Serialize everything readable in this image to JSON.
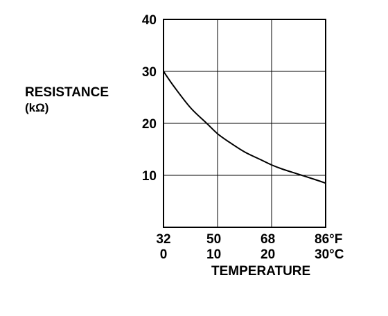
{
  "chart_data": {
    "type": "line",
    "ylabel": "RESISTANCE",
    "yunit": "(kΩ)",
    "xlabel": "TEMPERATURE",
    "xlim": [
      0,
      30
    ],
    "ylim": [
      0,
      40
    ],
    "x_ticks_celsius": [
      {
        "value": 0,
        "label": "0"
      },
      {
        "value": 10,
        "label": "10"
      },
      {
        "value": 20,
        "label": "20"
      },
      {
        "value": 30,
        "label": "30°C"
      }
    ],
    "x_ticks_fahrenheit": [
      "32",
      "50",
      "68",
      "86°F"
    ],
    "y_ticks": [
      {
        "value": 10,
        "label": "10"
      },
      {
        "value": 20,
        "label": "20"
      },
      {
        "value": 30,
        "label": "30"
      },
      {
        "value": 40,
        "label": "40"
      }
    ],
    "grid": true,
    "series": [
      {
        "x": [
          0,
          2,
          5,
          8,
          10,
          12,
          15,
          18,
          20,
          22,
          25,
          28,
          30
        ],
        "y": [
          30.0,
          27.0,
          23.0,
          20.0,
          18.0,
          16.5,
          14.5,
          13.0,
          12.0,
          11.2,
          10.2,
          9.2,
          8.5
        ]
      }
    ],
    "color": "#000000"
  }
}
